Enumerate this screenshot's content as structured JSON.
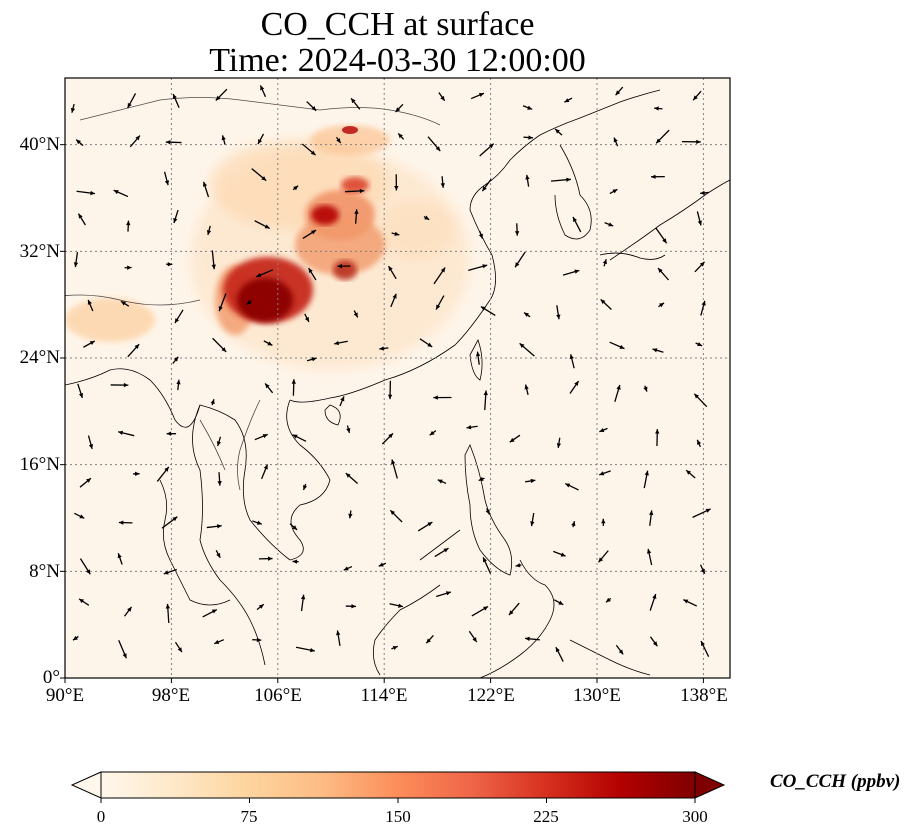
{
  "title": {
    "line1": "CO_CCH at surface",
    "line2": "Time: 2024-03-30 12:00:00"
  },
  "map": {
    "lon_range": [
      90,
      140
    ],
    "lat_range": [
      0,
      45
    ],
    "x_ticks": [
      "90°E",
      "98°E",
      "106°E",
      "114°E",
      "122°E",
      "130°E",
      "138°E"
    ],
    "x_tick_values": [
      90,
      98,
      106,
      114,
      122,
      130,
      138
    ],
    "y_ticks": [
      "40°N",
      "32°N",
      "24°N",
      "16°N",
      "8°N",
      "0°"
    ],
    "y_tick_values": [
      40,
      32,
      24,
      16,
      8,
      0
    ],
    "gridlines": "dotted"
  },
  "colorbar": {
    "label": "CO_CCH (ppbv)",
    "ticks": [
      "0",
      "75",
      "150",
      "225",
      "300"
    ],
    "min": 0,
    "max": 300,
    "extend": "both",
    "colormap": [
      "#fff7ec",
      "#fee8c8",
      "#fdd49e",
      "#fdbb84",
      "#fc8d59",
      "#ef6548",
      "#d7301f",
      "#b30000",
      "#7f0000"
    ]
  }
}
